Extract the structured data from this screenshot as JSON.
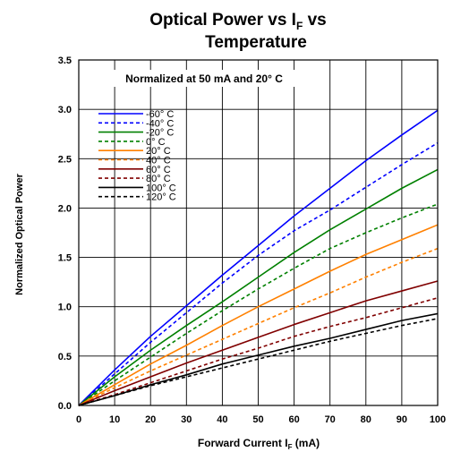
{
  "chart_data": {
    "type": "line",
    "title_lines": [
      "Optical Power vs I",
      "F",
      " vs",
      "Temperature"
    ],
    "subtitle": "Normalized at 50 mA and 20° C",
    "xlabel": {
      "text": "Forward Current I",
      "sub": "F",
      "suffix": " (mA)"
    },
    "ylabel": "Normalized Optical Power",
    "xlim": [
      0,
      100
    ],
    "ylim": [
      0,
      3.5
    ],
    "x_ticks": [
      0,
      10,
      20,
      30,
      40,
      50,
      60,
      70,
      80,
      90,
      100
    ],
    "y_ticks": [
      0.0,
      0.5,
      1.0,
      1.5,
      2.0,
      2.5,
      3.0,
      3.5
    ],
    "y_tick_labels": [
      "0.0",
      "0.5",
      "1.0",
      "1.5",
      "2.0",
      "2.5",
      "3.0",
      "3.5"
    ],
    "grid": true,
    "legend_position": "top-left",
    "x": [
      0,
      10,
      20,
      30,
      40,
      50,
      60,
      70,
      80,
      90,
      100
    ],
    "series": [
      {
        "name": "-60° C",
        "color": "#0000ff",
        "dash": "solid",
        "values": [
          0,
          0.36,
          0.7,
          1.01,
          1.32,
          1.62,
          1.92,
          2.2,
          2.48,
          2.74,
          2.99
        ]
      },
      {
        "name": "-40° C",
        "color": "#0000ff",
        "dash": "dashed",
        "values": [
          0,
          0.32,
          0.64,
          0.94,
          1.24,
          1.52,
          1.77,
          1.98,
          2.21,
          2.44,
          2.66
        ]
      },
      {
        "name": "-20° C",
        "color": "#008000",
        "dash": "solid",
        "values": [
          0,
          0.29,
          0.56,
          0.81,
          1.05,
          1.3,
          1.55,
          1.78,
          1.99,
          2.2,
          2.39
        ]
      },
      {
        "name": "0° C",
        "color": "#008000",
        "dash": "dashed",
        "values": [
          0,
          0.25,
          0.49,
          0.73,
          0.96,
          1.18,
          1.39,
          1.59,
          1.75,
          1.9,
          2.04
        ]
      },
      {
        "name": "20° C",
        "color": "#ff8000",
        "dash": "solid",
        "values": [
          0,
          0.21,
          0.42,
          0.61,
          0.81,
          1.0,
          1.18,
          1.36,
          1.53,
          1.68,
          1.83
        ]
      },
      {
        "name": "40° C",
        "color": "#ff8000",
        "dash": "dashed",
        "values": [
          0,
          0.18,
          0.35,
          0.51,
          0.67,
          0.83,
          0.99,
          1.14,
          1.3,
          1.45,
          1.59
        ]
      },
      {
        "name": "60° C",
        "color": "#800000",
        "dash": "solid",
        "values": [
          0,
          0.15,
          0.29,
          0.43,
          0.56,
          0.69,
          0.82,
          0.94,
          1.06,
          1.16,
          1.26
        ]
      },
      {
        "name": "80° C",
        "color": "#800000",
        "dash": "dashed",
        "values": [
          0,
          0.11,
          0.23,
          0.35,
          0.47,
          0.58,
          0.7,
          0.8,
          0.89,
          0.99,
          1.09
        ]
      },
      {
        "name": "100° C",
        "color": "#000000",
        "dash": "solid",
        "values": [
          0,
          0.1,
          0.21,
          0.31,
          0.42,
          0.51,
          0.6,
          0.68,
          0.77,
          0.86,
          0.93
        ]
      },
      {
        "name": "120° C",
        "color": "#000000",
        "dash": "dashed",
        "values": [
          0,
          0.1,
          0.2,
          0.29,
          0.38,
          0.47,
          0.56,
          0.65,
          0.73,
          0.81,
          0.88
        ]
      }
    ]
  }
}
